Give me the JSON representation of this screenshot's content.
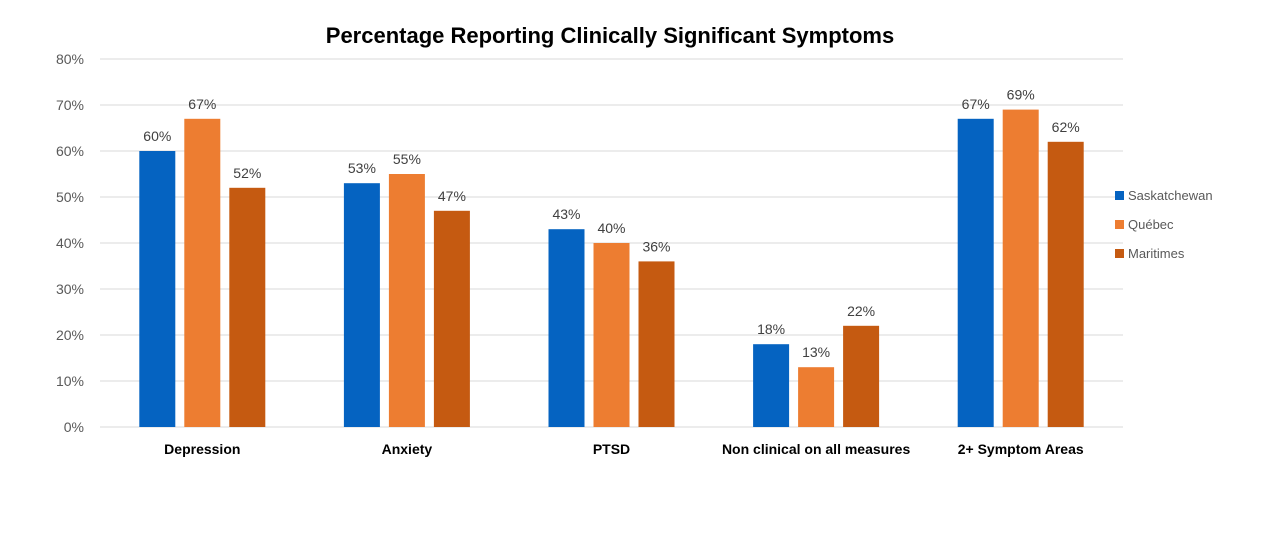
{
  "chart_data": {
    "type": "bar",
    "title": "Percentage Reporting Clinically Significant Symptoms",
    "categories": [
      "Depression",
      "Anxiety",
      "PTSD",
      "Non clinical on all measures",
      "2+ Symptom Areas"
    ],
    "series": [
      {
        "name": "Saskatchewan",
        "color": "#0563C1",
        "values": [
          60,
          53,
          43,
          18,
          67
        ],
        "labels": [
          "60%",
          "53%",
          "43%",
          "18%",
          "67%"
        ]
      },
      {
        "name": "Québec",
        "color": "#ED7D31",
        "values": [
          67,
          55,
          40,
          13,
          69
        ],
        "labels": [
          "67%",
          "55%",
          "40%",
          "13%",
          "69%"
        ]
      },
      {
        "name": "Maritimes",
        "color": "#C55A11",
        "values": [
          52,
          47,
          36,
          22,
          62
        ],
        "labels": [
          "52%",
          "47%",
          "36%",
          "22%",
          "62%"
        ]
      }
    ],
    "ylim": [
      0,
      80
    ],
    "yticks": [
      0,
      10,
      20,
      30,
      40,
      50,
      60,
      70,
      80
    ],
    "ytick_labels": [
      "0%",
      "10%",
      "20%",
      "30%",
      "40%",
      "50%",
      "60%",
      "70%",
      "80%"
    ],
    "grid": true,
    "legend_position": "right"
  }
}
